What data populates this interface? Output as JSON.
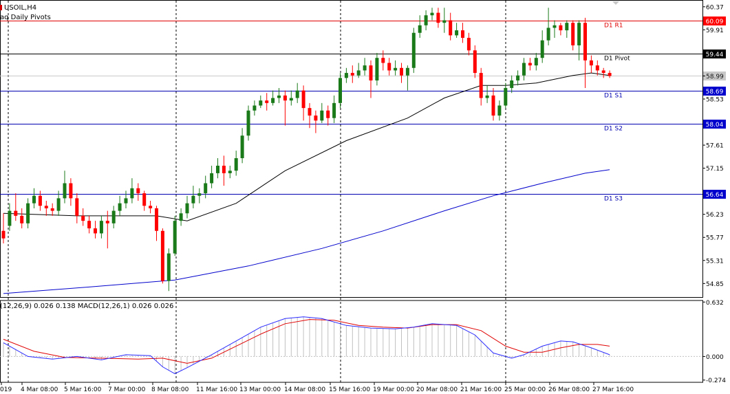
{
  "header": {
    "symbol": "USOIL,H4",
    "indicator": "aq Daily Pivots",
    "macd_label": "(12,26,9) 0.026 0.138 MACD(12,26,1) 0.026 0.026"
  },
  "colors": {
    "bull": "#1a7a1a",
    "bear": "#ff0000",
    "sma_fast": "#000000",
    "sma_slow": "#0000cc",
    "pivot_red": "#e00000",
    "support_blue": "#0000b0",
    "macd_line": "#2a2aff",
    "signal_line": "#e00000",
    "hist": "#c0c0c0",
    "price_box_dark": "#000000",
    "price_box_red": "#ff0000",
    "price_box_blue": "#0000cc",
    "price_box_grey": "#c8c8c8"
  },
  "chart_data": [
    {
      "type": "candlestick",
      "title": "USOIL,H4",
      "ylim": [
        54.58,
        60.45
      ],
      "yticks": [
        "60.37",
        "59.91",
        "58.99",
        "58.53",
        "57.61",
        "57.15",
        "56.23",
        "55.77",
        "55.31",
        "54.85"
      ],
      "xtick_labels": [
        "019",
        "4 Mar 08:00",
        "5 Mar 16:00",
        "7 Mar 00:00",
        "8 Mar 08:00",
        "11 Mar 16:00",
        "13 Mar 00:00",
        "14 Mar 08:00",
        "15 Mar 16:00",
        "19 Mar 00:00",
        "20 Mar 08:00",
        "21 Mar 16:00",
        "25 Mar 00:00",
        "26 Mar 08:00",
        "27 Mar 16:00"
      ],
      "pivot_levels": [
        {
          "name": "D1 R1",
          "value": 60.09,
          "label": "60.09",
          "color": "red"
        },
        {
          "name": "D1 Pivot",
          "value": 59.44,
          "label": "59.44",
          "color": "black"
        },
        {
          "name": "D1 S1",
          "value": 58.69,
          "label": "58.69",
          "color": "blue"
        },
        {
          "name": "D1 S2",
          "value": 58.04,
          "label": "58.04",
          "color": "blue"
        },
        {
          "name": "D1 S3",
          "value": 56.64,
          "label": "56.64",
          "color": "blue"
        }
      ],
      "current_price": "58.99",
      "candles": [
        [
          55.9,
          55.75,
          56.25,
          55.65
        ],
        [
          56.0,
          56.3,
          56.45,
          55.9
        ],
        [
          56.3,
          56.2,
          56.65,
          56.1
        ],
        [
          56.2,
          56.05,
          56.35,
          55.95
        ],
        [
          56.05,
          56.45,
          56.55,
          55.95
        ],
        [
          56.45,
          56.6,
          56.75,
          56.35
        ],
        [
          56.6,
          56.4,
          56.7,
          56.3
        ],
        [
          56.4,
          56.35,
          56.5,
          56.2
        ],
        [
          56.35,
          56.3,
          56.45,
          56.2
        ],
        [
          56.3,
          56.55,
          56.7,
          56.2
        ],
        [
          56.55,
          56.85,
          57.1,
          56.45
        ],
        [
          56.85,
          56.55,
          56.95,
          56.4
        ],
        [
          56.55,
          56.2,
          56.65,
          56.05
        ],
        [
          56.2,
          56.1,
          56.35,
          56.0
        ],
        [
          56.1,
          55.95,
          56.2,
          55.85
        ],
        [
          55.95,
          55.85,
          56.1,
          55.75
        ],
        [
          55.85,
          56.1,
          56.2,
          55.75
        ],
        [
          56.1,
          56.05,
          56.3,
          55.55
        ],
        [
          56.05,
          56.3,
          56.4,
          55.95
        ],
        [
          56.3,
          56.45,
          56.6,
          56.2
        ],
        [
          56.45,
          56.55,
          56.7,
          56.35
        ],
        [
          56.55,
          56.75,
          56.95,
          56.45
        ],
        [
          56.75,
          56.65,
          56.85,
          56.5
        ],
        [
          56.65,
          56.4,
          56.7,
          56.3
        ],
        [
          56.4,
          56.35,
          56.5,
          56.25
        ],
        [
          56.35,
          55.9,
          56.4,
          55.7
        ],
        [
          55.9,
          54.9,
          55.95,
          54.85
        ],
        [
          54.9,
          55.45,
          55.55,
          54.7
        ],
        [
          55.45,
          56.1,
          56.2,
          55.4
        ],
        [
          56.1,
          56.25,
          56.35,
          56.0
        ],
        [
          56.25,
          56.45,
          56.6,
          56.15
        ],
        [
          56.45,
          56.6,
          56.8,
          56.35
        ],
        [
          56.6,
          56.65,
          56.75,
          56.45
        ],
        [
          56.65,
          56.85,
          57.0,
          56.55
        ],
        [
          56.85,
          57.05,
          57.2,
          56.75
        ],
        [
          57.05,
          57.2,
          57.35,
          56.95
        ],
        [
          57.2,
          57.05,
          57.4,
          56.8
        ],
        [
          57.05,
          57.1,
          57.2,
          56.95
        ],
        [
          57.1,
          57.35,
          57.5,
          57.0
        ],
        [
          57.35,
          57.8,
          57.95,
          57.25
        ],
        [
          57.8,
          58.3,
          58.4,
          57.7
        ],
        [
          58.3,
          58.4,
          58.5,
          58.2
        ],
        [
          58.4,
          58.5,
          58.6,
          58.35
        ],
        [
          58.5,
          58.45,
          58.65,
          58.3
        ],
        [
          58.45,
          58.55,
          58.7,
          58.4
        ],
        [
          58.55,
          58.6,
          58.75,
          58.45
        ],
        [
          58.6,
          58.5,
          58.7,
          58.0
        ],
        [
          58.5,
          58.55,
          58.7,
          58.4
        ],
        [
          58.55,
          58.7,
          58.85,
          58.45
        ],
        [
          58.7,
          58.35,
          58.8,
          58.1
        ],
        [
          58.35,
          58.2,
          58.45,
          57.95
        ],
        [
          58.2,
          58.1,
          58.3,
          57.85
        ],
        [
          58.1,
          58.3,
          58.45,
          58.05
        ],
        [
          58.3,
          58.15,
          58.4,
          58.0
        ],
        [
          58.15,
          58.45,
          58.6,
          58.05
        ],
        [
          58.45,
          58.95,
          59.05,
          58.35
        ],
        [
          58.95,
          59.05,
          59.15,
          58.85
        ],
        [
          59.05,
          59.0,
          59.2,
          58.85
        ],
        [
          59.0,
          59.1,
          59.25,
          58.95
        ],
        [
          59.1,
          59.2,
          59.35,
          59.0
        ],
        [
          59.2,
          58.9,
          59.3,
          58.55
        ],
        [
          58.9,
          59.35,
          59.45,
          58.8
        ],
        [
          59.35,
          59.25,
          59.5,
          59.1
        ],
        [
          59.25,
          59.1,
          59.35,
          59.0
        ],
        [
          59.1,
          59.15,
          59.3,
          59.0
        ],
        [
          59.15,
          59.0,
          59.25,
          58.85
        ],
        [
          59.0,
          59.15,
          59.2,
          58.7
        ],
        [
          59.15,
          59.85,
          59.95,
          59.05
        ],
        [
          59.85,
          60.0,
          60.2,
          59.75
        ],
        [
          60.0,
          60.2,
          60.3,
          59.9
        ],
        [
          60.2,
          60.25,
          60.35,
          60.1
        ],
        [
          60.25,
          60.05,
          60.35,
          59.95
        ],
        [
          60.05,
          60.1,
          60.35,
          59.85
        ],
        [
          60.1,
          59.8,
          60.25,
          59.7
        ],
        [
          59.8,
          59.9,
          60.05,
          59.75
        ],
        [
          59.9,
          59.75,
          60.05,
          59.65
        ],
        [
          59.75,
          59.5,
          59.85,
          59.4
        ],
        [
          59.5,
          59.05,
          59.6,
          58.95
        ],
        [
          59.05,
          58.55,
          59.15,
          58.4
        ],
        [
          58.55,
          58.6,
          58.8,
          58.45
        ],
        [
          58.6,
          58.2,
          58.75,
          58.1
        ],
        [
          58.2,
          58.4,
          58.5,
          58.1
        ],
        [
          58.4,
          58.75,
          58.85,
          58.35
        ],
        [
          58.75,
          58.9,
          59.0,
          58.65
        ],
        [
          58.9,
          59.0,
          59.1,
          58.8
        ],
        [
          59.0,
          59.25,
          59.35,
          58.9
        ],
        [
          59.25,
          59.2,
          59.35,
          59.1
        ],
        [
          59.2,
          59.35,
          59.45,
          59.1
        ],
        [
          59.35,
          59.7,
          59.9,
          59.25
        ],
        [
          59.7,
          59.95,
          60.35,
          59.6
        ],
        [
          59.95,
          60.0,
          60.1,
          59.75
        ],
        [
          60.0,
          59.9,
          60.05,
          59.8
        ],
        [
          59.9,
          60.05,
          60.1,
          59.75
        ],
        [
          60.05,
          59.6,
          60.1,
          59.5
        ],
        [
          59.6,
          60.05,
          60.1,
          59.3
        ],
        [
          60.05,
          59.3,
          60.15,
          58.75
        ],
        [
          59.3,
          59.2,
          59.4,
          59.05
        ],
        [
          59.2,
          59.1,
          59.3,
          59.0
        ],
        [
          59.1,
          59.05,
          59.15,
          58.95
        ],
        [
          59.05,
          58.99,
          59.1,
          58.95
        ]
      ],
      "sma_fast": [
        [
          0,
          56.25
        ],
        [
          12,
          56.2
        ],
        [
          25,
          56.2
        ],
        [
          30,
          56.1
        ],
        [
          38,
          56.45
        ],
        [
          46,
          57.1
        ],
        [
          56,
          57.7
        ],
        [
          66,
          58.15
        ],
        [
          72,
          58.55
        ],
        [
          78,
          58.8
        ],
        [
          82,
          58.8
        ],
        [
          87,
          58.85
        ],
        [
          93,
          59.0
        ],
        [
          96,
          59.05
        ],
        [
          99,
          59.0
        ]
      ],
      "sma_slow": [
        [
          0,
          54.65
        ],
        [
          14,
          54.78
        ],
        [
          28,
          54.92
        ],
        [
          40,
          55.2
        ],
        [
          52,
          55.55
        ],
        [
          62,
          55.9
        ],
        [
          72,
          56.3
        ],
        [
          80,
          56.6
        ],
        [
          88,
          56.85
        ],
        [
          95,
          57.05
        ],
        [
          99,
          57.12
        ]
      ]
    },
    {
      "type": "line",
      "title": "MACD(12,26,1)",
      "ylim": [
        -0.3,
        0.65
      ],
      "yticks": [
        "0.632",
        "0.000",
        "-0.274"
      ],
      "series": [
        {
          "name": "MACD",
          "points": [
            [
              0,
              0.16
            ],
            [
              4,
              0.0
            ],
            [
              8,
              -0.03
            ],
            [
              12,
              0.0
            ],
            [
              16,
              -0.04
            ],
            [
              20,
              0.02
            ],
            [
              24,
              0.01
            ],
            [
              26,
              -0.12
            ],
            [
              28,
              -0.2
            ],
            [
              30,
              -0.13
            ],
            [
              34,
              0.02
            ],
            [
              38,
              0.18
            ],
            [
              42,
              0.34
            ],
            [
              46,
              0.44
            ],
            [
              49,
              0.46
            ],
            [
              52,
              0.44
            ],
            [
              56,
              0.36
            ],
            [
              60,
              0.33
            ],
            [
              64,
              0.32
            ],
            [
              67,
              0.34
            ],
            [
              70,
              0.38
            ],
            [
              74,
              0.36
            ],
            [
              77,
              0.25
            ],
            [
              80,
              0.04
            ],
            [
              83,
              -0.02
            ],
            [
              85,
              0.02
            ],
            [
              88,
              0.12
            ],
            [
              91,
              0.18
            ],
            [
              93,
              0.17
            ],
            [
              96,
              0.1
            ],
            [
              99,
              0.02
            ]
          ]
        },
        {
          "name": "Signal",
          "points": [
            [
              0,
              0.2
            ],
            [
              5,
              0.06
            ],
            [
              10,
              -0.01
            ],
            [
              16,
              -0.02
            ],
            [
              22,
              -0.03
            ],
            [
              26,
              -0.02
            ],
            [
              30,
              -0.08
            ],
            [
              34,
              -0.02
            ],
            [
              38,
              0.12
            ],
            [
              42,
              0.26
            ],
            [
              46,
              0.38
            ],
            [
              50,
              0.43
            ],
            [
              54,
              0.42
            ],
            [
              58,
              0.36
            ],
            [
              62,
              0.34
            ],
            [
              66,
              0.33
            ],
            [
              70,
              0.37
            ],
            [
              74,
              0.37
            ],
            [
              78,
              0.3
            ],
            [
              82,
              0.12
            ],
            [
              85,
              0.05
            ],
            [
              88,
              0.05
            ],
            [
              91,
              0.1
            ],
            [
              94,
              0.14
            ],
            [
              97,
              0.14
            ],
            [
              99,
              0.12
            ]
          ]
        }
      ]
    }
  ]
}
